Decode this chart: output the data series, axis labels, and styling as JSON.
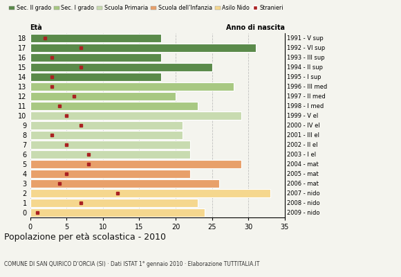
{
  "ages": [
    0,
    1,
    2,
    3,
    4,
    5,
    6,
    7,
    8,
    9,
    10,
    11,
    12,
    13,
    14,
    15,
    16,
    17,
    18
  ],
  "years": [
    "2009 - nido",
    "2008 - nido",
    "2007 - nido",
    "2006 - mat",
    "2005 - mat",
    "2004 - mat",
    "2003 - I el",
    "2002 - II el",
    "2001 - III el",
    "2000 - IV el",
    "1999 - V el",
    "1998 - I med",
    "1997 - II med",
    "1996 - III med",
    "1995 - I sup",
    "1994 - II sup",
    "1993 - III sup",
    "1992 - VI sup",
    "1991 - V sup"
  ],
  "bar_values": [
    24,
    23,
    33,
    26,
    22,
    29,
    22,
    22,
    21,
    21,
    29,
    23,
    20,
    28,
    18,
    25,
    18,
    31,
    18
  ],
  "stranieri": [
    1,
    7,
    12,
    4,
    5,
    8,
    8,
    5,
    3,
    7,
    5,
    4,
    6,
    3,
    3,
    7,
    3,
    7,
    2
  ],
  "bar_colors": [
    "#f5d78e",
    "#f5d78e",
    "#f5d78e",
    "#e8a06a",
    "#e8a06a",
    "#e8a06a",
    "#c8dbb0",
    "#c8dbb0",
    "#c8dbb0",
    "#c8dbb0",
    "#c8dbb0",
    "#a8c882",
    "#a8c882",
    "#a8c882",
    "#5a8a4a",
    "#5a8a4a",
    "#5a8a4a",
    "#5a8a4a",
    "#5a8a4a"
  ],
  "legend_labels": [
    "Sec. II grado",
    "Sec. I grado",
    "Scuola Primaria",
    "Scuola dell’Infanzia",
    "Asilo Nido",
    "Stranieri"
  ],
  "legend_colors": [
    "#5a8a4a",
    "#a8c882",
    "#c8dbb0",
    "#e8a06a",
    "#f5d78e",
    "#aa2222"
  ],
  "title": "Popolazione per età scolastica - 2010",
  "subtitle": "COMUNE DI SAN QUIRICO D’ORCIA (SI) · Dati ISTAT 1° gennaio 2010 · Elaborazione TUTTITALIA.IT",
  "xlabel_eta": "Età",
  "xlabel_anno": "Anno di nascita",
  "xlim": [
    0,
    35
  ],
  "xticks": [
    0,
    5,
    10,
    15,
    20,
    25,
    30,
    35
  ],
  "bg_color": "#f4f4ee",
  "bar_height": 0.92
}
